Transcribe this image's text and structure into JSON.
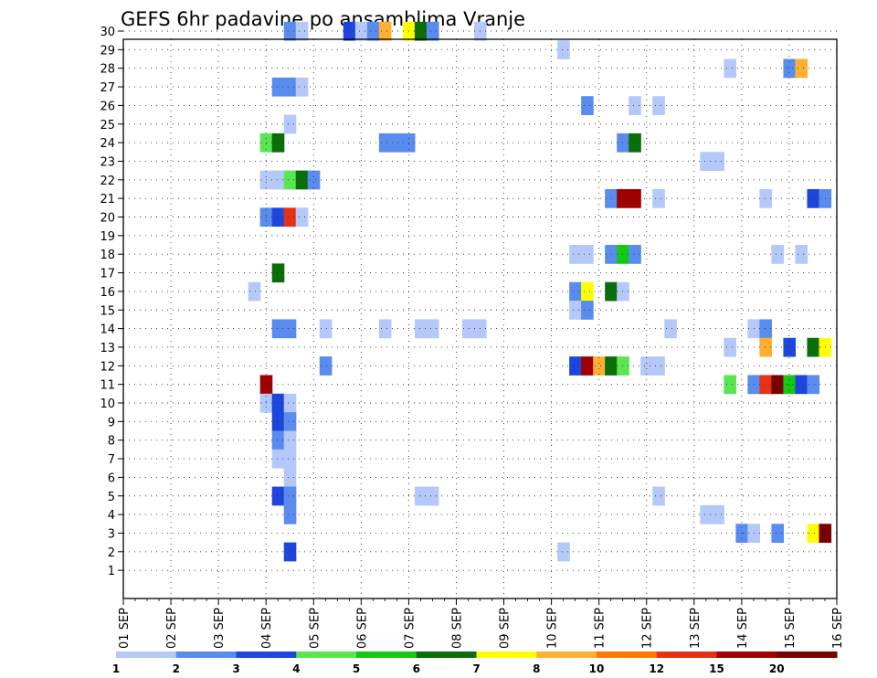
{
  "chart_data": {
    "type": "heatmap",
    "title": "GEFS 6hr padavine po ansamblima Vranje",
    "x_tick_labels": [
      "01 SEP",
      "02 SEP",
      "03 SEP",
      "04 SEP",
      "05 SEP",
      "06 SEP",
      "07 SEP",
      "08 SEP",
      "09 SEP",
      "10 SEP",
      "11 SEP",
      "12 SEP",
      "13 SEP",
      "14 SEP",
      "15 SEP",
      "16 SEP"
    ],
    "y_tick_labels": [
      "1",
      "2",
      "3",
      "4",
      "5",
      "6",
      "7",
      "8",
      "9",
      "10",
      "11",
      "12",
      "13",
      "14",
      "15",
      "16",
      "17",
      "18",
      "19",
      "20",
      "21",
      "22",
      "23",
      "24",
      "25",
      "26",
      "27",
      "28",
      "29",
      "30"
    ],
    "legend": {
      "colors": [
        "#b4c8fa",
        "#5a8cf0",
        "#1e46dc",
        "#5ae650",
        "#14c814",
        "#0a6e0a",
        "#ffff00",
        "#ffaf32",
        "#ff7800",
        "#e63214",
        "#a00000",
        "#780000"
      ],
      "labels": [
        "1",
        "2",
        "3",
        "4",
        "5",
        "6",
        "7",
        "8",
        "10",
        "12",
        "15",
        "20"
      ]
    },
    "cells": [
      {
        "m": 30,
        "d": 4.5,
        "c": 2
      },
      {
        "m": 30,
        "d": 4.75,
        "c": 1
      },
      {
        "m": 30,
        "d": 5.75,
        "c": 3
      },
      {
        "m": 30,
        "d": 6.0,
        "c": 1
      },
      {
        "m": 30,
        "d": 6.25,
        "c": 2
      },
      {
        "m": 30,
        "d": 6.5,
        "c": 8
      },
      {
        "m": 30,
        "d": 7.0,
        "c": 7
      },
      {
        "m": 30,
        "d": 7.25,
        "c": 6
      },
      {
        "m": 30,
        "d": 7.5,
        "c": 2
      },
      {
        "m": 30,
        "d": 8.5,
        "c": 1
      },
      {
        "m": 29,
        "d": 10.25,
        "c": 1
      },
      {
        "m": 28,
        "d": 13.75,
        "c": 1
      },
      {
        "m": 28,
        "d": 15.0,
        "c": 2
      },
      {
        "m": 28,
        "d": 15.25,
        "c": 8
      },
      {
        "m": 27,
        "d": 4.25,
        "c": 2
      },
      {
        "m": 27,
        "d": 4.5,
        "c": 2
      },
      {
        "m": 27,
        "d": 4.75,
        "c": 1
      },
      {
        "m": 26,
        "d": 10.75,
        "c": 2
      },
      {
        "m": 26,
        "d": 11.75,
        "c": 1
      },
      {
        "m": 26,
        "d": 12.25,
        "c": 1
      },
      {
        "m": 25,
        "d": 4.5,
        "c": 1
      },
      {
        "m": 24,
        "d": 4.0,
        "c": 4
      },
      {
        "m": 24,
        "d": 4.25,
        "c": 6
      },
      {
        "m": 24,
        "d": 6.5,
        "c": 2
      },
      {
        "m": 24,
        "d": 6.75,
        "c": 2
      },
      {
        "m": 24,
        "d": 7.0,
        "c": 2
      },
      {
        "m": 24,
        "d": 11.5,
        "c": 2
      },
      {
        "m": 24,
        "d": 11.75,
        "c": 6
      },
      {
        "m": 23,
        "d": 13.25,
        "c": 1
      },
      {
        "m": 23,
        "d": 13.5,
        "c": 1
      },
      {
        "m": 22,
        "d": 4.0,
        "c": 1
      },
      {
        "m": 22,
        "d": 4.25,
        "c": 1
      },
      {
        "m": 22,
        "d": 4.5,
        "c": 4
      },
      {
        "m": 22,
        "d": 4.75,
        "c": 6
      },
      {
        "m": 22,
        "d": 5.0,
        "c": 2
      },
      {
        "m": 21,
        "d": 11.25,
        "c": 2
      },
      {
        "m": 21,
        "d": 11.5,
        "c": 11
      },
      {
        "m": 21,
        "d": 11.75,
        "c": 11
      },
      {
        "m": 21,
        "d": 12.25,
        "c": 1
      },
      {
        "m": 21,
        "d": 14.5,
        "c": 1
      },
      {
        "m": 21,
        "d": 15.5,
        "c": 3
      },
      {
        "m": 21,
        "d": 15.75,
        "c": 2
      },
      {
        "m": 20,
        "d": 4.0,
        "c": 2
      },
      {
        "m": 20,
        "d": 4.25,
        "c": 3
      },
      {
        "m": 20,
        "d": 4.5,
        "c": 10
      },
      {
        "m": 20,
        "d": 4.75,
        "c": 1
      },
      {
        "m": 18,
        "d": 10.5,
        "c": 1
      },
      {
        "m": 18,
        "d": 10.75,
        "c": 1
      },
      {
        "m": 18,
        "d": 11.25,
        "c": 2
      },
      {
        "m": 18,
        "d": 11.5,
        "c": 5
      },
      {
        "m": 18,
        "d": 11.75,
        "c": 2
      },
      {
        "m": 18,
        "d": 14.75,
        "c": 1
      },
      {
        "m": 18,
        "d": 15.25,
        "c": 1
      },
      {
        "m": 17,
        "d": 4.25,
        "c": 6
      },
      {
        "m": 16,
        "d": 3.75,
        "c": 1
      },
      {
        "m": 16,
        "d": 10.5,
        "c": 2
      },
      {
        "m": 16,
        "d": 10.75,
        "c": 7
      },
      {
        "m": 16,
        "d": 11.25,
        "c": 6
      },
      {
        "m": 16,
        "d": 11.5,
        "c": 1
      },
      {
        "m": 15,
        "d": 10.5,
        "c": 1
      },
      {
        "m": 15,
        "d": 10.75,
        "c": 2
      },
      {
        "m": 14,
        "d": 4.25,
        "c": 2
      },
      {
        "m": 14,
        "d": 4.5,
        "c": 2
      },
      {
        "m": 14,
        "d": 5.25,
        "c": 1
      },
      {
        "m": 14,
        "d": 6.5,
        "c": 1
      },
      {
        "m": 14,
        "d": 7.25,
        "c": 1
      },
      {
        "m": 14,
        "d": 7.5,
        "c": 1
      },
      {
        "m": 14,
        "d": 8.25,
        "c": 1
      },
      {
        "m": 14,
        "d": 8.5,
        "c": 1
      },
      {
        "m": 14,
        "d": 12.5,
        "c": 1
      },
      {
        "m": 14,
        "d": 14.25,
        "c": 1
      },
      {
        "m": 14,
        "d": 14.5,
        "c": 2
      },
      {
        "m": 13,
        "d": 13.75,
        "c": 1
      },
      {
        "m": 13,
        "d": 14.5,
        "c": 8
      },
      {
        "m": 13,
        "d": 15.0,
        "c": 3
      },
      {
        "m": 13,
        "d": 15.5,
        "c": 6
      },
      {
        "m": 13,
        "d": 15.75,
        "c": 7
      },
      {
        "m": 12,
        "d": 5.25,
        "c": 2
      },
      {
        "m": 12,
        "d": 10.5,
        "c": 3
      },
      {
        "m": 12,
        "d": 10.75,
        "c": 11
      },
      {
        "m": 12,
        "d": 11.0,
        "c": 8
      },
      {
        "m": 12,
        "d": 11.25,
        "c": 6
      },
      {
        "m": 12,
        "d": 11.5,
        "c": 4
      },
      {
        "m": 12,
        "d": 12.0,
        "c": 1
      },
      {
        "m": 12,
        "d": 12.25,
        "c": 1
      },
      {
        "m": 11,
        "d": 4.0,
        "c": 11
      },
      {
        "m": 11,
        "d": 13.75,
        "c": 4
      },
      {
        "m": 11,
        "d": 14.25,
        "c": 2
      },
      {
        "m": 11,
        "d": 14.5,
        "c": 10
      },
      {
        "m": 11,
        "d": 14.75,
        "c": 12
      },
      {
        "m": 11,
        "d": 15.0,
        "c": 5
      },
      {
        "m": 11,
        "d": 15.25,
        "c": 3
      },
      {
        "m": 11,
        "d": 15.5,
        "c": 2
      },
      {
        "m": 10,
        "d": 4.0,
        "c": 1
      },
      {
        "m": 10,
        "d": 4.25,
        "c": 3
      },
      {
        "m": 10,
        "d": 4.5,
        "c": 1
      },
      {
        "m": 9,
        "d": 4.25,
        "c": 3
      },
      {
        "m": 9,
        "d": 4.5,
        "c": 2
      },
      {
        "m": 8,
        "d": 4.25,
        "c": 2
      },
      {
        "m": 8,
        "d": 4.5,
        "c": 1
      },
      {
        "m": 7,
        "d": 4.25,
        "c": 1
      },
      {
        "m": 7,
        "d": 4.5,
        "c": 1
      },
      {
        "m": 6,
        "d": 4.5,
        "c": 1
      },
      {
        "m": 5,
        "d": 4.25,
        "c": 3
      },
      {
        "m": 5,
        "d": 4.5,
        "c": 2
      },
      {
        "m": 5,
        "d": 7.25,
        "c": 1
      },
      {
        "m": 5,
        "d": 7.5,
        "c": 1
      },
      {
        "m": 5,
        "d": 12.25,
        "c": 1
      },
      {
        "m": 4,
        "d": 4.5,
        "c": 2
      },
      {
        "m": 4,
        "d": 13.25,
        "c": 1
      },
      {
        "m": 4,
        "d": 13.5,
        "c": 1
      },
      {
        "m": 3,
        "d": 14.0,
        "c": 2
      },
      {
        "m": 3,
        "d": 14.25,
        "c": 1
      },
      {
        "m": 3,
        "d": 14.75,
        "c": 2
      },
      {
        "m": 3,
        "d": 15.5,
        "c": 7
      },
      {
        "m": 3,
        "d": 15.75,
        "c": 12
      },
      {
        "m": 2,
        "d": 4.5,
        "c": 3
      },
      {
        "m": 2,
        "d": 10.25,
        "c": 1
      }
    ]
  }
}
